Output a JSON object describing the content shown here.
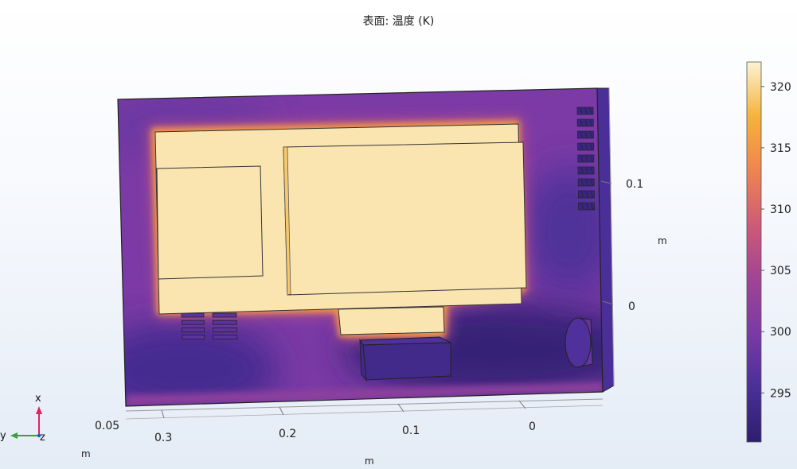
{
  "chart_data": {
    "type": "heatmap",
    "title": "表面: 温度 (K)",
    "quantity": "温度",
    "unit": "K",
    "colormap": [
      "#2d1e6e",
      "#4a2f98",
      "#7a3aa6",
      "#a04494",
      "#cf5a78",
      "#ee8550",
      "#f6b33a",
      "#fbf3d4"
    ],
    "colorbar": {
      "range": [
        291,
        322
      ],
      "ticks": [
        295,
        300,
        305,
        310,
        315,
        320
      ]
    },
    "surface_regions": [
      {
        "region": "enclosure-wall-upper",
        "value": 300
      },
      {
        "region": "enclosure-wall-upper-left",
        "value": 298.5
      },
      {
        "region": "enclosure-wall-lower-left",
        "value": 294.5
      },
      {
        "region": "enclosure-wall-lower-right",
        "value": 292
      },
      {
        "region": "enclosure-wall-right",
        "value": 296
      },
      {
        "region": "enclosure-side-right",
        "value": 295.5
      },
      {
        "region": "enclosure-floor-edge",
        "value": 302
      },
      {
        "region": "hot-halo-outer",
        "value": 306
      },
      {
        "region": "hot-halo-inner",
        "value": 315
      },
      {
        "region": "board-surfaces",
        "value": 321
      },
      {
        "region": "block-front",
        "value": 294
      },
      {
        "region": "block-top",
        "value": 296
      },
      {
        "region": "fan-cylinder",
        "value": 296
      },
      {
        "region": "left-slot-vents",
        "value": 300
      },
      {
        "region": "right-vent-grille",
        "value": 293
      }
    ],
    "axes": {
      "x": {
        "label": "m",
        "tick_labels": [
          "0.3",
          "0.2",
          "0.1",
          "0"
        ]
      },
      "y": {
        "label": "m",
        "tick_labels": [
          "0.05"
        ]
      },
      "z": {
        "label": "m",
        "tick_labels": [
          "0.1",
          "0"
        ]
      }
    },
    "triad": {
      "labels": [
        "x",
        "y",
        "z"
      ]
    }
  }
}
